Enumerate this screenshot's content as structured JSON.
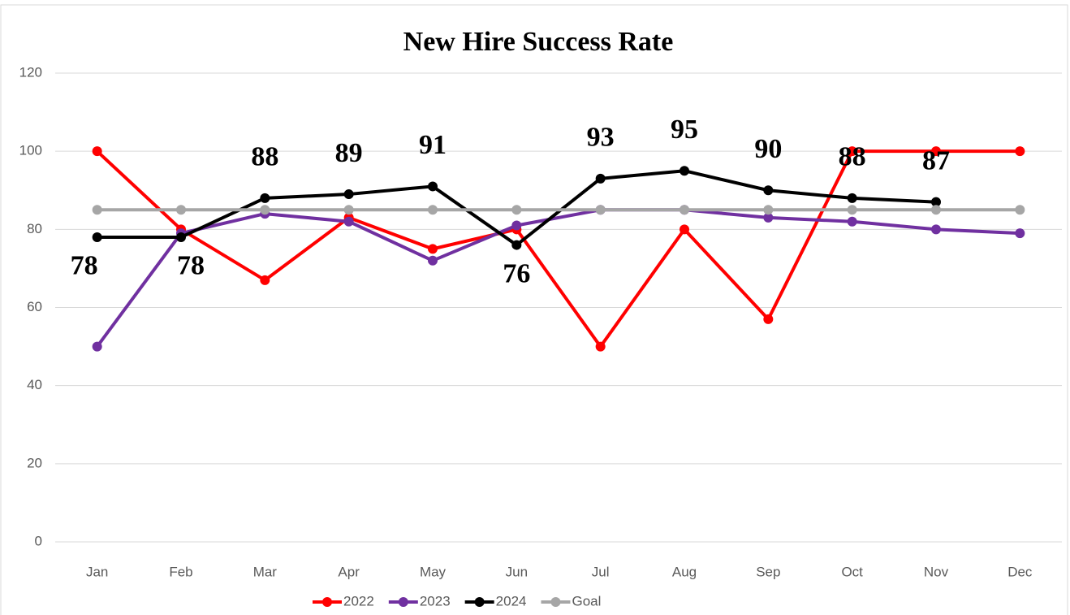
{
  "chart_data": {
    "type": "line",
    "title": "New Hire Success Rate",
    "categories": [
      "Jan",
      "Feb",
      "Mar",
      "Apr",
      "May",
      "Jun",
      "Jul",
      "Aug",
      "Sep",
      "Oct",
      "Nov",
      "Dec"
    ],
    "series": [
      {
        "name": "2022",
        "color": "#ff0000",
        "values": [
          100,
          80,
          67,
          83,
          75,
          80,
          50,
          80,
          57,
          100,
          100,
          100
        ]
      },
      {
        "name": "2023",
        "color": "#7030a0",
        "values": [
          50,
          79,
          84,
          82,
          72,
          81,
          85,
          85,
          83,
          82,
          80,
          79
        ]
      },
      {
        "name": "2024",
        "color": "#000000",
        "values": [
          78,
          78,
          88,
          89,
          91,
          76,
          93,
          95,
          90,
          88,
          87,
          null
        ],
        "data_labels": true
      },
      {
        "name": "Goal",
        "color": "#a6a6a6",
        "values": [
          85,
          85,
          85,
          85,
          85,
          85,
          85,
          85,
          85,
          85,
          85,
          85
        ]
      }
    ],
    "ylim": [
      0,
      120
    ],
    "yticks": [
      0,
      20,
      40,
      60,
      80,
      100,
      120
    ],
    "grid": true,
    "legend": "bottom"
  }
}
